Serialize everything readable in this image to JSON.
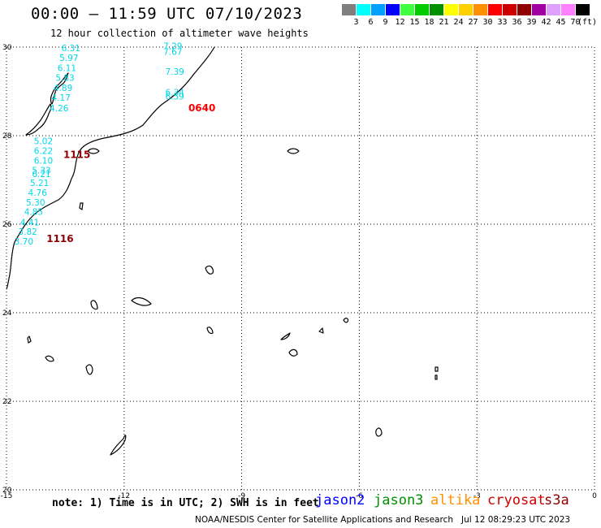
{
  "header": {
    "title": "00:00 — 11:59 UTC 07/10/2023",
    "subtitle": "12 hour collection of altimeter wave heights"
  },
  "legend": {
    "unit_label": "(ft)",
    "bins": [
      {
        "label": "3",
        "color": "#7f7f7f"
      },
      {
        "label": "6",
        "color": "#00ffff"
      },
      {
        "label": "9",
        "color": "#00a0ff"
      },
      {
        "label": "12",
        "color": "#0000ff"
      },
      {
        "label": "15",
        "color": "#40ff40"
      },
      {
        "label": "18",
        "color": "#00cc00"
      },
      {
        "label": "21",
        "color": "#009000"
      },
      {
        "label": "24",
        "color": "#ffff00"
      },
      {
        "label": "27",
        "color": "#ffd000"
      },
      {
        "label": "30",
        "color": "#ff9000"
      },
      {
        "label": "33",
        "color": "#ff0000"
      },
      {
        "label": "36",
        "color": "#cc0000"
      },
      {
        "label": "39",
        "color": "#900000"
      },
      {
        "label": "42",
        "color": "#a000a0"
      },
      {
        "label": "45",
        "color": "#e0a0ff"
      },
      {
        "label": "70",
        "color": "#ff80ff"
      },
      {
        "label": "",
        "color": "#000000"
      }
    ]
  },
  "map": {
    "lon_range": [
      -15,
      0
    ],
    "lat_range": [
      20,
      30
    ],
    "x_ticks": [
      "-15",
      "-12",
      "-9",
      "-6",
      "-3",
      "0"
    ],
    "y_ticks": [
      "30",
      "28",
      "26",
      "24",
      "22",
      "20"
    ],
    "passes": [
      {
        "label": "0640",
        "color": "#ff0000",
        "lon": -10.36,
        "lat": 28.55
      },
      {
        "label": "1115",
        "color": "#900000",
        "lon": -13.55,
        "lat": 27.5
      },
      {
        "label": "1116",
        "color": "#900000",
        "lon": -13.98,
        "lat": 25.6
      }
    ],
    "waves": [
      {
        "value": "7.29",
        "lon": -11.0,
        "lat": 29.95
      },
      {
        "value": "7.67",
        "lon": -11.0,
        "lat": 29.83
      },
      {
        "value": "7.39",
        "lon": -10.95,
        "lat": 29.38
      },
      {
        "value": "6.34",
        "lon": -10.95,
        "lat": 28.91
      },
      {
        "value": "6.59",
        "lon": -10.95,
        "lat": 28.82
      },
      {
        "value": "6.31",
        "lon": -13.6,
        "lat": 29.91
      },
      {
        "value": "5.97",
        "lon": -13.65,
        "lat": 29.69
      },
      {
        "value": "6.11",
        "lon": -13.7,
        "lat": 29.46
      },
      {
        "value": "5.83",
        "lon": -13.75,
        "lat": 29.24
      },
      {
        "value": "4.89",
        "lon": -13.8,
        "lat": 29.01
      },
      {
        "value": "4.17",
        "lon": -13.85,
        "lat": 28.79
      },
      {
        "value": "4.26",
        "lon": -13.9,
        "lat": 28.55
      },
      {
        "value": "5.02",
        "lon": -14.3,
        "lat": 27.81
      },
      {
        "value": "6.22",
        "lon": -14.3,
        "lat": 27.59
      },
      {
        "value": "6.10",
        "lon": -14.3,
        "lat": 27.37
      },
      {
        "value": "5.33",
        "lon": -14.35,
        "lat": 27.15
      },
      {
        "value": "6.21",
        "lon": -14.35,
        "lat": 27.06
      },
      {
        "value": "5.21",
        "lon": -14.4,
        "lat": 26.86
      },
      {
        "value": "4.76",
        "lon": -14.45,
        "lat": 26.64
      },
      {
        "value": "5.30",
        "lon": -14.5,
        "lat": 26.42
      },
      {
        "value": "4.85",
        "lon": -14.55,
        "lat": 26.21
      },
      {
        "value": "4.41",
        "lon": -14.65,
        "lat": 25.97
      },
      {
        "value": "3.82",
        "lon": -14.7,
        "lat": 25.76
      },
      {
        "value": "3.70",
        "lon": -14.8,
        "lat": 25.54
      }
    ]
  },
  "footer": {
    "note": "note: 1) Time is in UTC; 2) SWH is in feet",
    "satellites": [
      {
        "name": "jason2",
        "color": "#0000ff"
      },
      {
        "name": "jason3",
        "color": "#009000"
      },
      {
        "name": "altika",
        "color": "#ff9000"
      },
      {
        "name": "cryosat",
        "color": "#cc0000"
      },
      {
        "name": "s3a",
        "color": "#900000"
      }
    ],
    "credit": "NOAA/NESDIS Center for Satellite Applications and Research   Jul 12 08:29:23 UTC 2023"
  }
}
